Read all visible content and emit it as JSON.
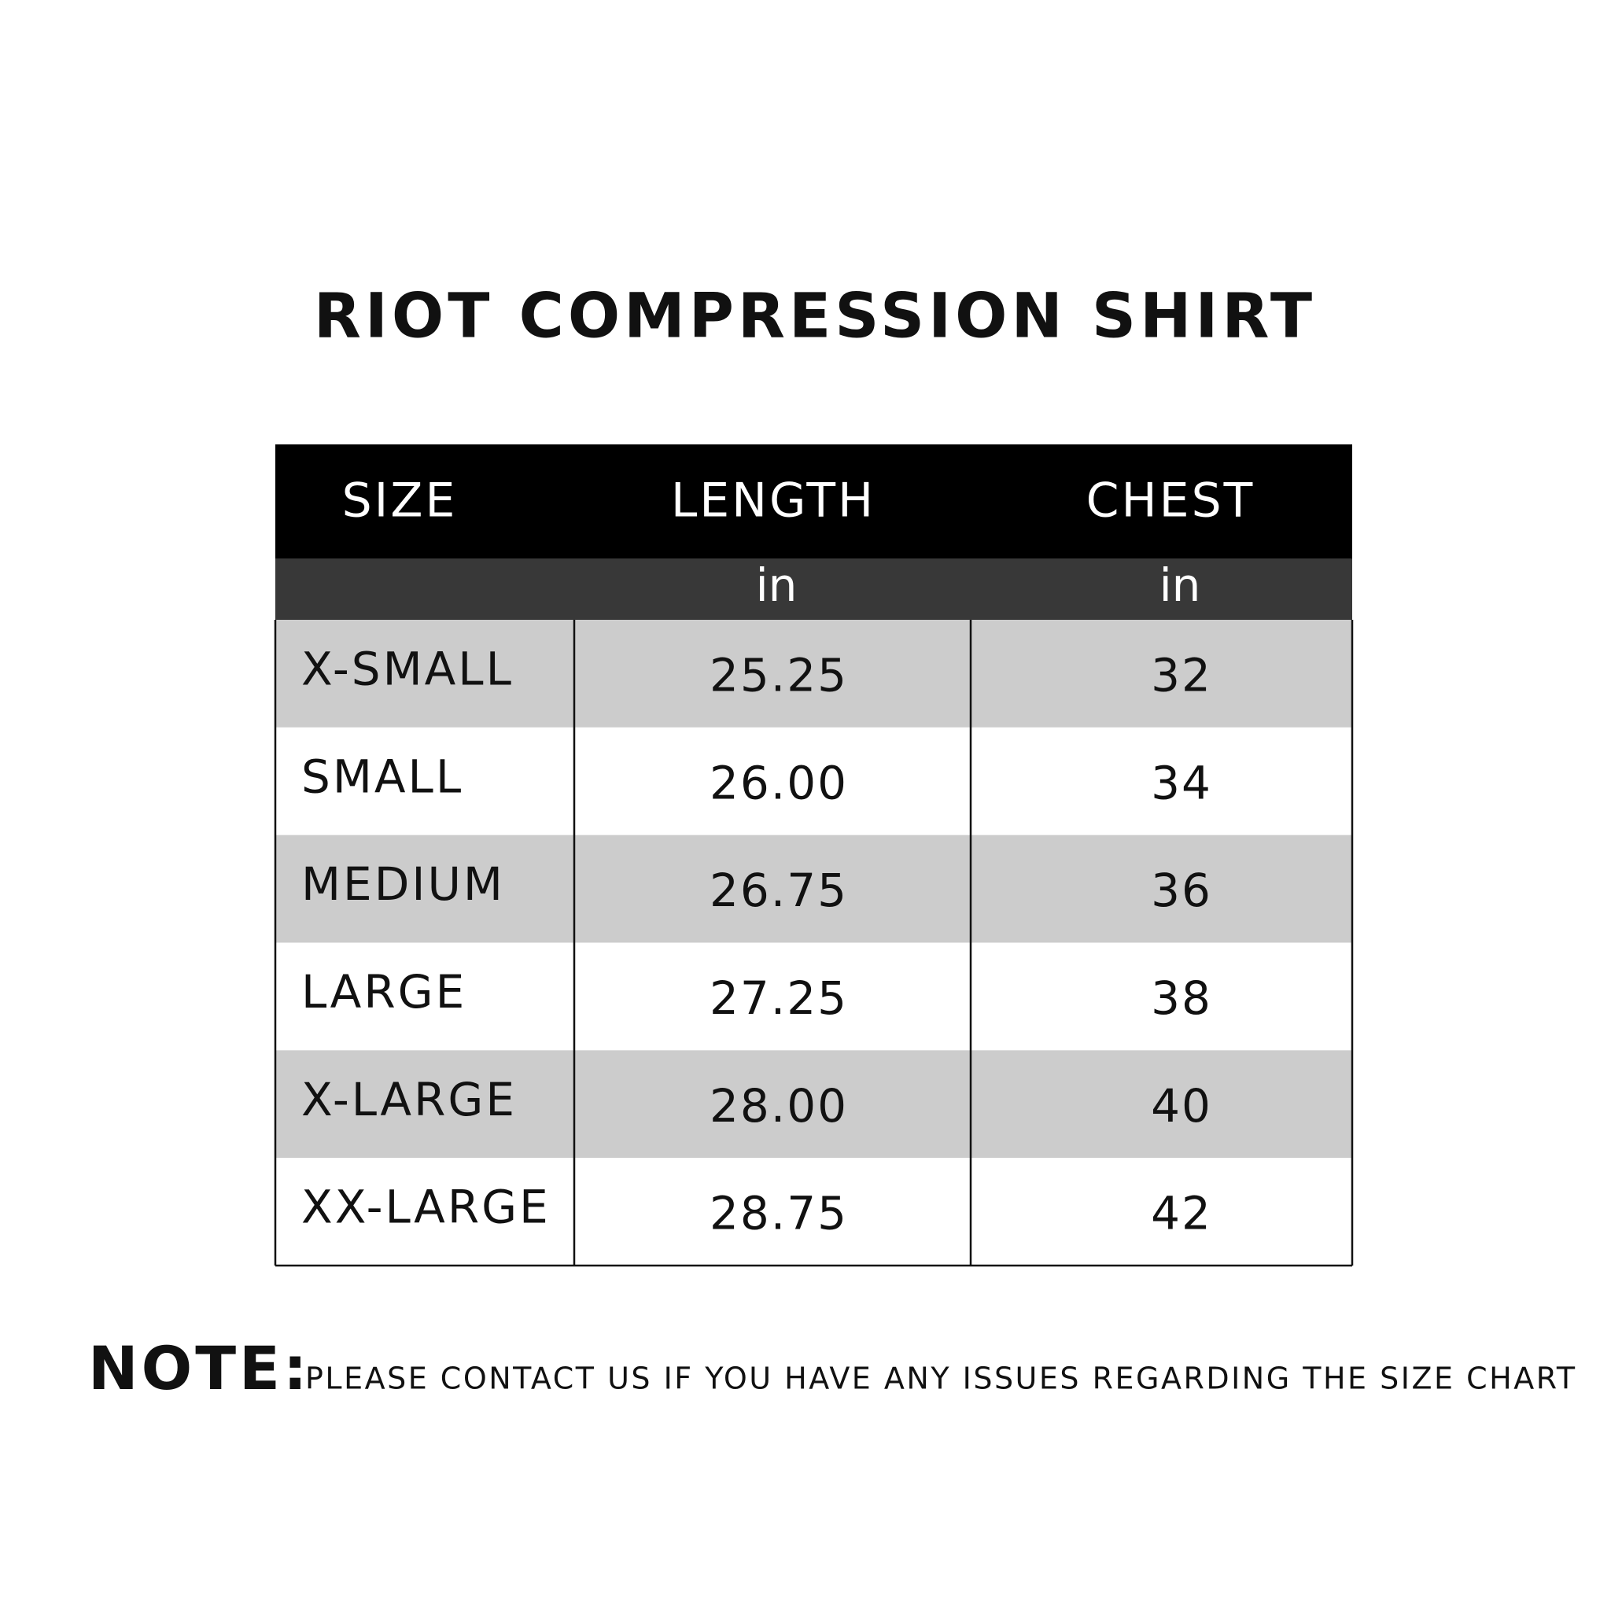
{
  "header": {
    "title": "RIOT COMPRESSION SHIRT"
  },
  "table": {
    "columns": [
      "SIZE",
      "LENGTH",
      "CHEST"
    ],
    "units": [
      "in",
      "in"
    ],
    "rows": [
      [
        "X-SMALL",
        "25.25",
        "32"
      ],
      [
        "SMALL",
        "26.00",
        "34"
      ],
      [
        "MEDIUM",
        "26.75",
        "36"
      ],
      [
        "LARGE",
        "27.25",
        "38"
      ],
      [
        "X-LARGE",
        "28.00",
        "40"
      ],
      [
        "XX-LARGE",
        "28.75",
        "42"
      ]
    ]
  },
  "note": {
    "label": "NOTE:",
    "text": "PLEASE CONTACT US IF YOU HAVE ANY ISSUES REGARDING THE SIZE CHART"
  }
}
